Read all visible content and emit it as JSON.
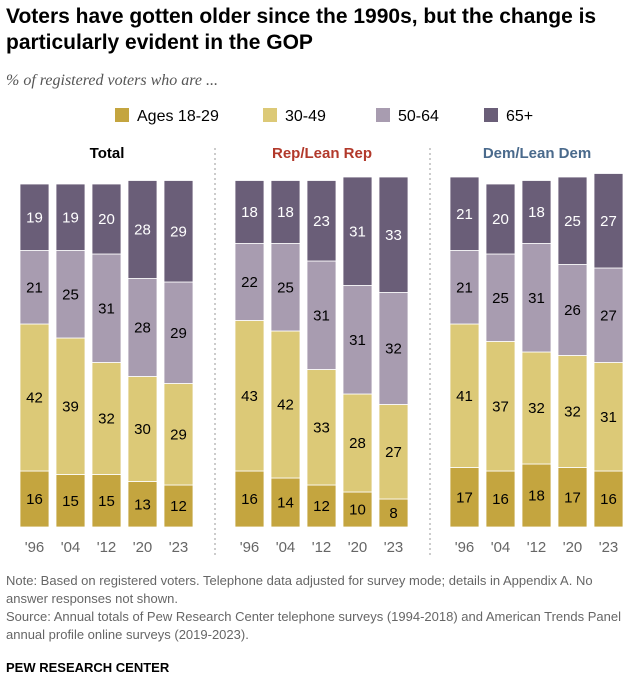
{
  "title": "Voters have gotten older since the 1990s, but the change is particularly evident in the GOP",
  "subtitle": "% of registered voters who are ...",
  "notes": {
    "note": "Note: Based on registered voters. Telephone data adjusted for survey mode; details in Appendix A. No answer responses not shown.",
    "source": "Source: Annual totals of Pew Research Center telephone surveys (1994-2018) and American Trends Panel annual profile online surveys (2019-2023)."
  },
  "brand": "PEW RESEARCH CENTER",
  "colors": {
    "Ages 18-29": "#c4a53f",
    "30-49": "#dcc977",
    "50-64": "#a89cb0",
    "65+": "#6a5e78",
    "total_title": "#000000",
    "rep_title": "#b2392b",
    "dem_title": "#4a6a8c"
  },
  "chart_data": [
    {
      "type": "bar",
      "stacked": true,
      "title": "Total",
      "categories": [
        "'96",
        "'04",
        "'12",
        "'20",
        "'23"
      ],
      "series": [
        {
          "name": "Ages 18-29",
          "values": [
            16,
            15,
            15,
            13,
            12
          ]
        },
        {
          "name": "30-49",
          "values": [
            42,
            39,
            32,
            30,
            29
          ]
        },
        {
          "name": "50-64",
          "values": [
            21,
            25,
            31,
            28,
            29
          ]
        },
        {
          "name": "65+",
          "values": [
            19,
            19,
            20,
            28,
            29
          ]
        }
      ],
      "legend": "top"
    },
    {
      "type": "bar",
      "stacked": true,
      "title": "Rep/Lean Rep",
      "categories": [
        "'96",
        "'04",
        "'12",
        "'20",
        "'23"
      ],
      "series": [
        {
          "name": "Ages 18-29",
          "values": [
            16,
            14,
            12,
            10,
            8
          ]
        },
        {
          "name": "30-49",
          "values": [
            43,
            42,
            33,
            28,
            27
          ]
        },
        {
          "name": "50-64",
          "values": [
            22,
            25,
            31,
            31,
            32
          ]
        },
        {
          "name": "65+",
          "values": [
            18,
            18,
            23,
            31,
            33
          ]
        }
      ]
    },
    {
      "type": "bar",
      "stacked": true,
      "title": "Dem/Lean Dem",
      "categories": [
        "'96",
        "'04",
        "'12",
        "'20",
        "'23"
      ],
      "series": [
        {
          "name": "Ages 18-29",
          "values": [
            17,
            16,
            18,
            17,
            16
          ]
        },
        {
          "name": "30-49",
          "values": [
            41,
            37,
            32,
            32,
            31
          ]
        },
        {
          "name": "50-64",
          "values": [
            21,
            25,
            31,
            26,
            27
          ]
        },
        {
          "name": "65+",
          "values": [
            21,
            20,
            18,
            25,
            27
          ]
        }
      ]
    }
  ]
}
